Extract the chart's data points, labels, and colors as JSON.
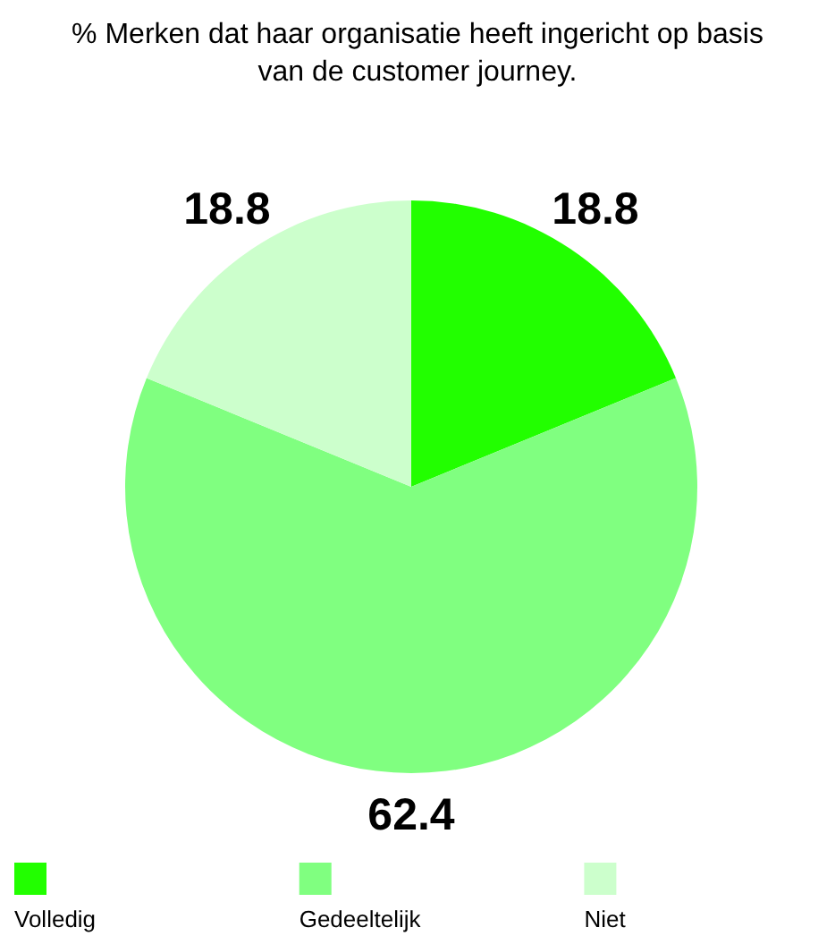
{
  "chart_data": {
    "type": "pie",
    "title": "% Merken dat haar organisatie heeft ingericht op basis van de customer journey.",
    "categories": [
      "Volledig",
      "Gedeeltelijk",
      "Niet"
    ],
    "values": [
      18.8,
      62.4,
      18.8
    ],
    "colors": [
      "#22ff00",
      "#80ff80",
      "#ccffcc"
    ],
    "data_labels": true,
    "legend": "bottom"
  }
}
